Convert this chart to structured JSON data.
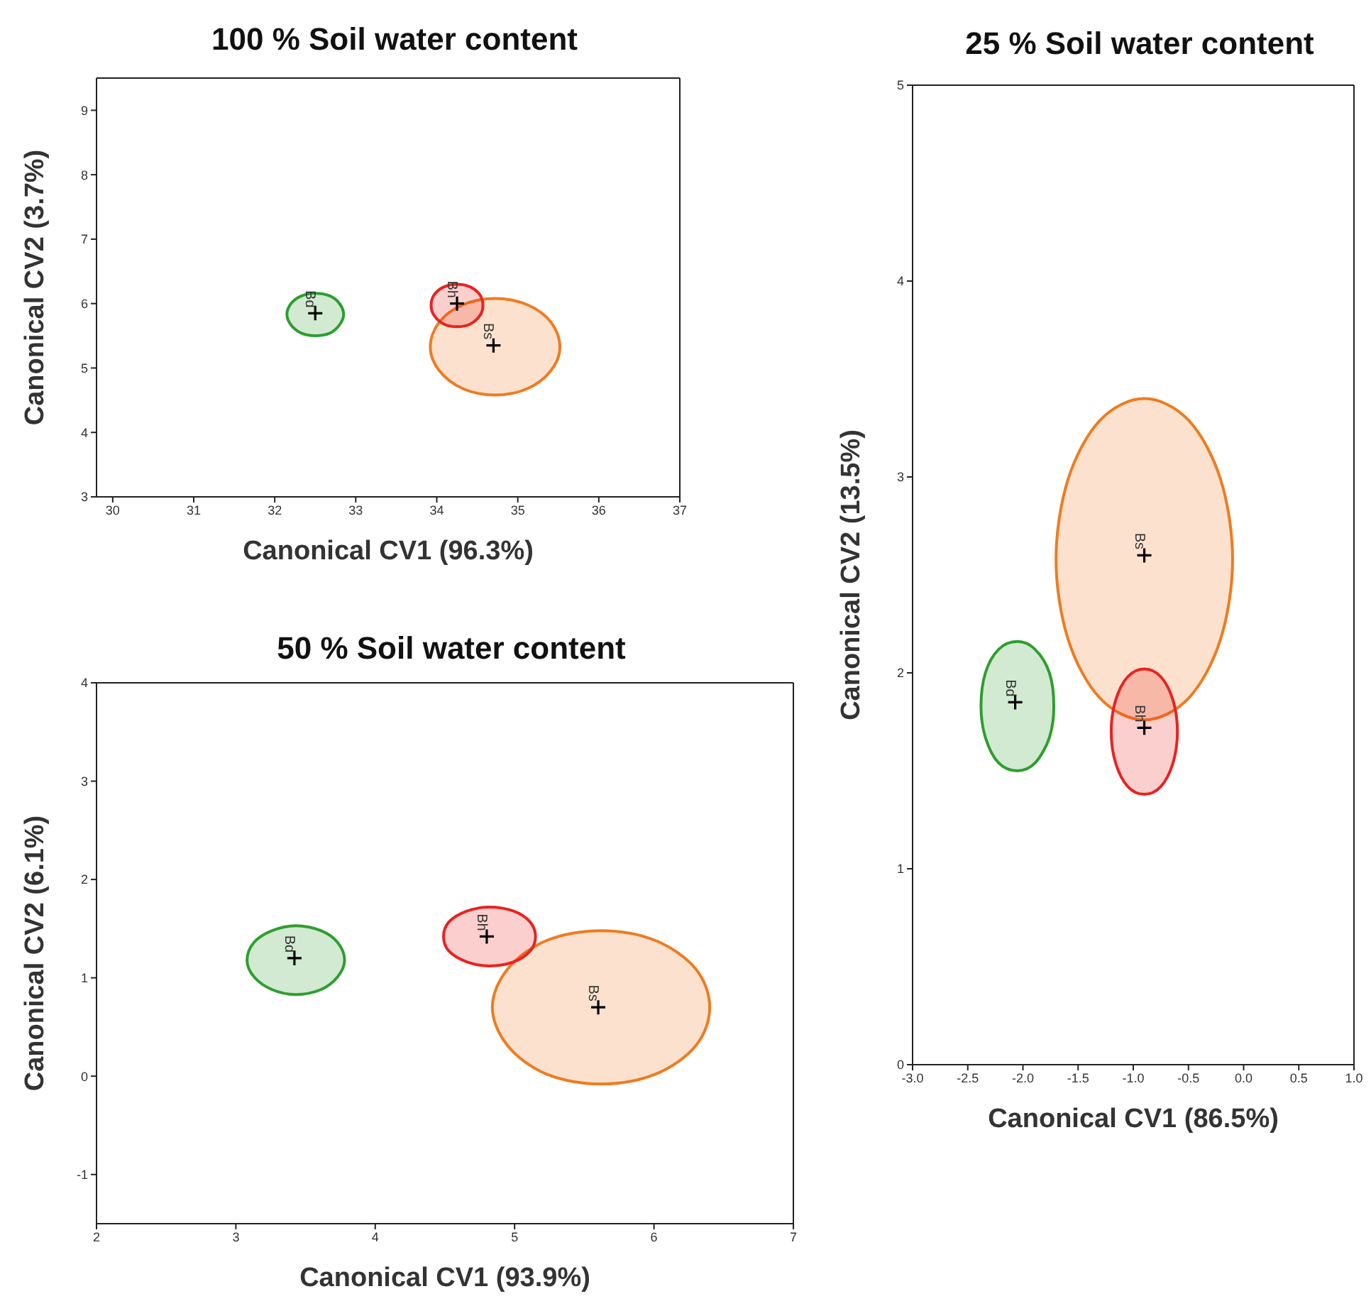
{
  "chart_data": [
    {
      "type": "area",
      "title": "100 % Soil water content",
      "xlabel": "Canonical CV1 (96.3%)",
      "ylabel": "Canonical CV2 (3.7%)",
      "xlim": [
        29.8,
        37
      ],
      "xticks": [
        30,
        31,
        32,
        33,
        34,
        35,
        36,
        37
      ],
      "ylim": [
        3,
        9.5
      ],
      "yticks": [
        3,
        4,
        5,
        6,
        7,
        8,
        9
      ],
      "grid": false,
      "legend": false,
      "marker": "none",
      "series": [
        {
          "color": "#f07b1f",
          "x": [
            35.52,
            35.41,
            35.12,
            34.72,
            34.32,
            34.03,
            33.92,
            34.03,
            34.32,
            34.72,
            35.12,
            35.41
          ],
          "values": [
            5.33,
            5.71,
            5.98,
            6.08,
            5.98,
            5.71,
            5.33,
            4.96,
            4.68,
            4.58,
            4.68,
            4.96
          ]
        },
        {
          "color": "#2e9e2e",
          "x": [
            32.85,
            32.8,
            32.68,
            32.5,
            32.33,
            32.2,
            32.15,
            32.2,
            32.33,
            32.5,
            32.68,
            32.8
          ],
          "values": [
            5.83,
            6.0,
            6.12,
            6.16,
            6.12,
            6.0,
            5.83,
            5.67,
            5.54,
            5.5,
            5.54,
            5.67
          ]
        },
        {
          "color": "#e8231f",
          "x": [
            34.57,
            34.53,
            34.41,
            34.25,
            34.09,
            33.97,
            33.93,
            33.97,
            34.09,
            34.25,
            34.41,
            34.53
          ],
          "values": [
            5.97,
            6.14,
            6.26,
            6.3,
            6.26,
            6.14,
            5.97,
            5.81,
            5.68,
            5.64,
            5.68,
            5.81
          ]
        },
        {
          "type": "scatter",
          "marker": "cross",
          "color": "#000000",
          "x": [
            32.5,
            34.25,
            34.7
          ],
          "values": [
            5.85,
            6.0,
            5.35
          ]
        }
      ],
      "annotations": [
        {
          "text": "Bd",
          "x": 32.5,
          "y": 5.85
        },
        {
          "text": "Bh",
          "x": 34.25,
          "y": 6.0
        },
        {
          "text": "Bs",
          "x": 34.7,
          "y": 5.35
        }
      ]
    },
    {
      "type": "area",
      "title": "25 % Soil water content",
      "xlabel": "Canonical CV1 (86.5%)",
      "ylabel": "Canonical CV2 (13.5%)",
      "xlim": [
        -3,
        1
      ],
      "xticks": [
        {
          "value": -3,
          "label": "-3.0"
        },
        {
          "value": -2.5,
          "label": "-2.5"
        },
        {
          "value": -2,
          "label": "-2.0"
        },
        {
          "value": -1.5,
          "label": "-1.5"
        },
        {
          "value": -1,
          "label": "-1.0"
        },
        {
          "value": -0.5,
          "label": "-0.5"
        },
        {
          "value": 0,
          "label": "0.0"
        },
        {
          "value": 0.5,
          "label": "0.5"
        },
        {
          "value": 1,
          "label": "1.0"
        }
      ],
      "ylim": [
        0,
        5
      ],
      "yticks": [
        0,
        1,
        2,
        3,
        4,
        5
      ],
      "grid": false,
      "legend": false,
      "marker": "none",
      "series": [
        {
          "color": "#f07b1f",
          "x": [
            -0.1,
            -0.21,
            -0.5,
            -0.9,
            -1.3,
            -1.59,
            -1.7,
            -1.59,
            -1.3,
            -0.9,
            -0.5,
            -0.21
          ],
          "values": [
            2.58,
            2.99,
            3.29,
            3.4,
            3.29,
            2.99,
            2.58,
            2.17,
            1.87,
            1.76,
            1.87,
            2.17
          ]
        },
        {
          "color": "#2e9e2e",
          "x": [
            -1.72,
            -1.76,
            -1.89,
            -2.05,
            -2.22,
            -2.34,
            -2.38,
            -2.34,
            -2.22,
            -2.05,
            -1.89,
            -1.76
          ],
          "values": [
            1.83,
            2.0,
            2.12,
            2.16,
            2.12,
            2.0,
            1.83,
            1.67,
            1.54,
            1.5,
            1.54,
            1.67
          ]
        },
        {
          "color": "#e8231f",
          "x": [
            -0.6,
            -0.64,
            -0.75,
            -0.9,
            -1.05,
            -1.16,
            -1.2,
            -1.16,
            -1.05,
            -0.9,
            -0.75,
            -0.64
          ],
          "values": [
            1.7,
            1.86,
            1.98,
            2.02,
            1.98,
            1.86,
            1.7,
            1.54,
            1.42,
            1.38,
            1.42,
            1.54
          ]
        },
        {
          "type": "scatter",
          "marker": "cross",
          "color": "#000000",
          "x": [
            -2.07,
            -0.9,
            -0.9
          ],
          "values": [
            1.85,
            1.72,
            2.6
          ]
        }
      ],
      "annotations": [
        {
          "text": "Bd",
          "x": -2.07,
          "y": 1.85
        },
        {
          "text": "Bh",
          "x": -0.9,
          "y": 1.72
        },
        {
          "text": "Bs",
          "x": -0.9,
          "y": 2.6
        }
      ]
    },
    {
      "type": "area",
      "title": "50 % Soil water content",
      "xlabel": "Canonical CV1 (93.9%)",
      "ylabel": "Canonical CV2 (6.1%)",
      "xlim": [
        2,
        7
      ],
      "xticks": [
        2,
        3,
        4,
        5,
        6,
        7
      ],
      "ylim": [
        -1.5,
        4
      ],
      "yticks": [
        -1,
        0,
        1,
        2,
        3,
        4
      ],
      "grid": false,
      "legend": false,
      "marker": "none",
      "series": [
        {
          "color": "#f07b1f",
          "x": [
            6.4,
            6.3,
            6.01,
            5.62,
            5.23,
            4.95,
            4.84,
            4.95,
            5.23,
            5.62,
            6.01,
            6.3
          ],
          "values": [
            0.7,
            1.09,
            1.38,
            1.48,
            1.38,
            1.09,
            0.7,
            0.31,
            0.02,
            -0.08,
            0.02,
            0.31
          ]
        },
        {
          "color": "#2e9e2e",
          "x": [
            3.78,
            3.73,
            3.61,
            3.43,
            3.26,
            3.13,
            3.08,
            3.13,
            3.26,
            3.43,
            3.61,
            3.73
          ],
          "values": [
            1.18,
            1.36,
            1.48,
            1.53,
            1.48,
            1.36,
            1.18,
            1.01,
            0.88,
            0.83,
            0.88,
            1.01
          ]
        },
        {
          "color": "#e8231f",
          "x": [
            5.15,
            5.11,
            4.99,
            4.82,
            4.66,
            4.53,
            4.49,
            4.53,
            4.66,
            4.82,
            4.99,
            5.11
          ],
          "values": [
            1.42,
            1.57,
            1.68,
            1.72,
            1.68,
            1.57,
            1.42,
            1.27,
            1.16,
            1.12,
            1.16,
            1.27
          ]
        },
        {
          "type": "scatter",
          "marker": "cross",
          "color": "#000000",
          "x": [
            3.42,
            4.8,
            5.6
          ],
          "values": [
            1.2,
            1.42,
            0.7
          ]
        }
      ],
      "annotations": [
        {
          "text": "Bd",
          "x": 3.42,
          "y": 1.2
        },
        {
          "text": "Bh",
          "x": 4.8,
          "y": 1.42
        },
        {
          "text": "Bs",
          "x": 5.6,
          "y": 0.7
        }
      ]
    }
  ]
}
